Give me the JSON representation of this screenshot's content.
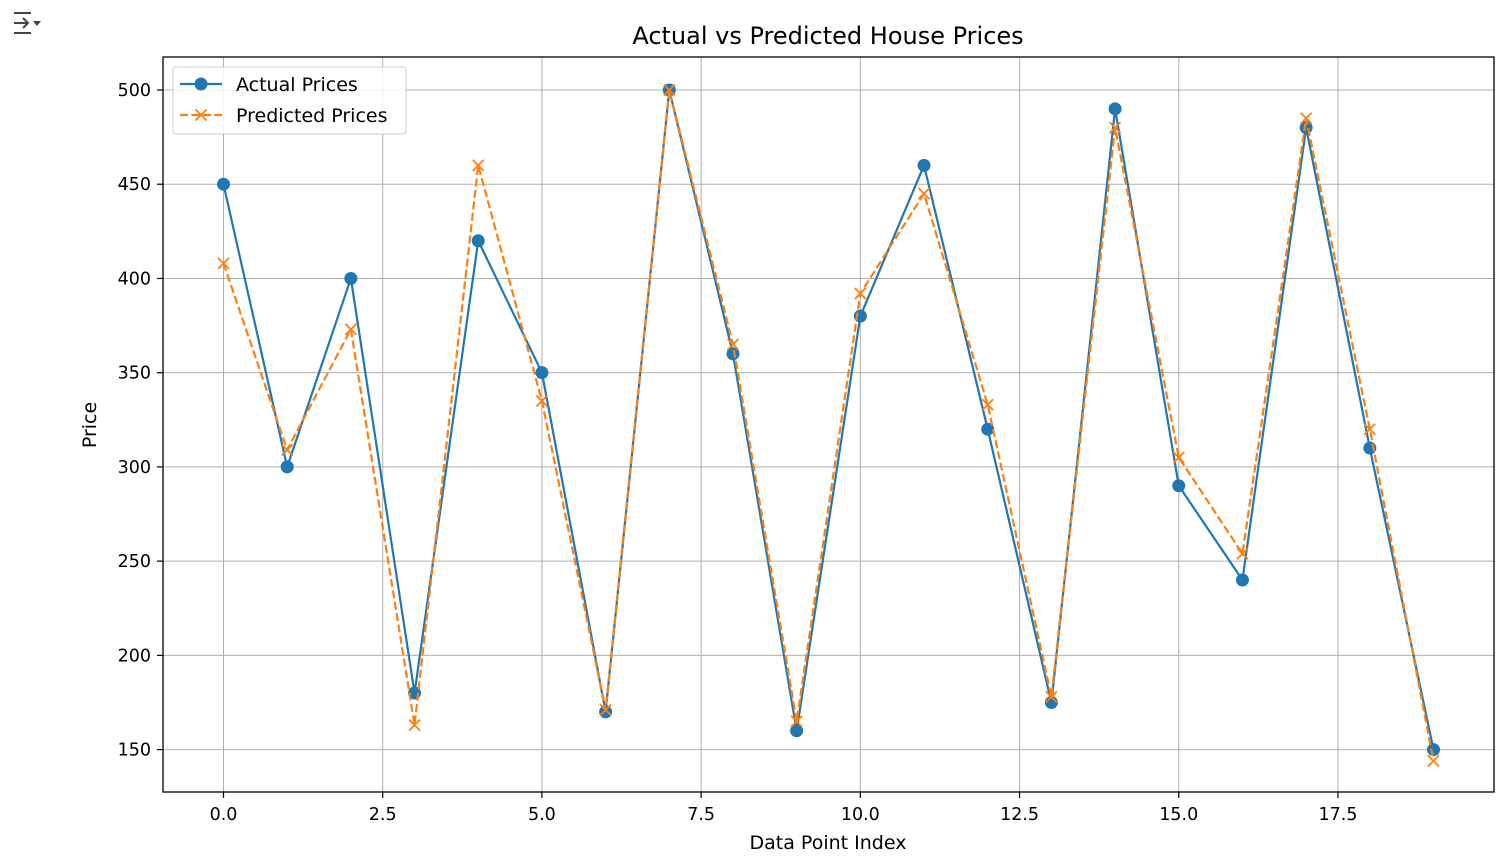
{
  "output_toggle": {
    "icon": "collapse-output-icon"
  },
  "chart_data": {
    "type": "line",
    "title": "Actual vs Predicted House Prices",
    "xlabel": "Data Point Index",
    "ylabel": "Price",
    "xlim": [
      -0.95,
      19.95
    ],
    "ylim": [
      127.5,
      517.5
    ],
    "xticks": [
      0,
      2.5,
      5,
      7.5,
      10,
      12.5,
      15,
      17.5
    ],
    "xtick_labels": [
      "0.0",
      "2.5",
      "5.0",
      "7.5",
      "10.0",
      "12.5",
      "15.0",
      "17.5"
    ],
    "yticks": [
      150,
      200,
      250,
      300,
      350,
      400,
      450,
      500
    ],
    "ytick_labels": [
      "150",
      "200",
      "250",
      "300",
      "350",
      "400",
      "450",
      "500"
    ],
    "grid": true,
    "legend_position": "top-left",
    "x": [
      0,
      1,
      2,
      3,
      4,
      5,
      6,
      7,
      8,
      9,
      10,
      11,
      12,
      13,
      14,
      15,
      16,
      17,
      18,
      19
    ],
    "series": [
      {
        "name": "Actual Prices",
        "color": "#1f77b4",
        "line_style": "solid",
        "marker": "circle",
        "values": [
          450,
          300,
          400,
          180,
          420,
          350,
          170,
          500,
          360,
          160,
          380,
          460,
          320,
          175,
          490,
          290,
          240,
          480,
          310,
          150
        ]
      },
      {
        "name": "Predicted Prices",
        "color": "#ff7f0e",
        "line_style": "dashed",
        "marker": "x",
        "values": [
          408,
          309,
          373,
          163,
          460,
          335,
          171,
          500,
          365,
          165,
          392,
          445,
          333,
          178,
          480,
          305,
          254,
          485,
          320,
          144
        ]
      }
    ]
  }
}
